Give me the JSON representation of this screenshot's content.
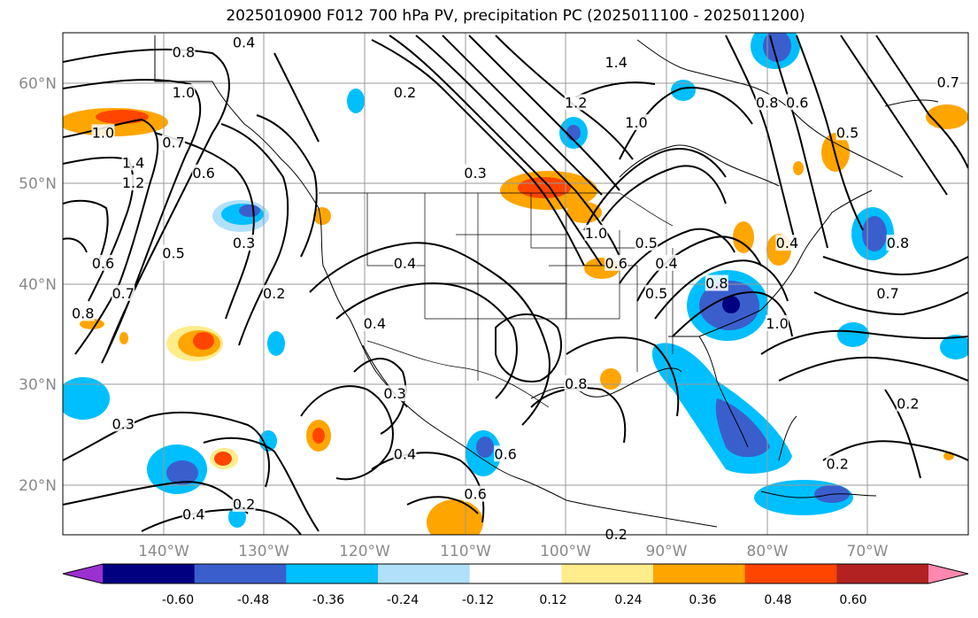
{
  "title": "2025010900 F012 700 hPa PV, precipitation PC (2025011100 - 2025011200)",
  "map": {
    "lat_ticks": [
      "20°N",
      "30°N",
      "40°N",
      "50°N",
      "60°N"
    ],
    "lon_ticks": [
      "140°W",
      "130°W",
      "120°W",
      "110°W",
      "100°W",
      "90°W",
      "80°W",
      "70°W"
    ],
    "lon_range": [
      -150,
      -60
    ],
    "lat_range": [
      15,
      65
    ],
    "grid": true
  },
  "colorbar": {
    "ticks": [
      "-0.60",
      "-0.48",
      "-0.36",
      "-0.24",
      "-0.12",
      "0.12",
      "0.24",
      "0.36",
      "0.48",
      "0.60"
    ],
    "colors": [
      "#9b30d0",
      "#000080",
      "#3a5fcd",
      "#00bfff",
      "#b0e0fa",
      "#ffffff",
      "#ffec8b",
      "#ffa500",
      "#ff4500",
      "#b22222",
      "#ff88b0"
    ]
  },
  "contour_labels": [
    {
      "text": "0.8",
      "lon": -138,
      "lat": 63
    },
    {
      "text": "1.0",
      "lon": -138,
      "lat": 59
    },
    {
      "text": "1.0",
      "lon": -146,
      "lat": 55
    },
    {
      "text": "0.7",
      "lon": -139,
      "lat": 54
    },
    {
      "text": "1.4",
      "lon": -143,
      "lat": 52
    },
    {
      "text": "1.2",
      "lon": -143,
      "lat": 50
    },
    {
      "text": "0.6",
      "lon": -136,
      "lat": 51
    },
    {
      "text": "0.3",
      "lon": -132,
      "lat": 44
    },
    {
      "text": "0.5",
      "lon": -139,
      "lat": 43
    },
    {
      "text": "0.6",
      "lon": -146,
      "lat": 42
    },
    {
      "text": "0.7",
      "lon": -144,
      "lat": 39
    },
    {
      "text": "0.8",
      "lon": -148,
      "lat": 37
    },
    {
      "text": "0.2",
      "lon": -129,
      "lat": 39
    },
    {
      "text": "0.2",
      "lon": -116,
      "lat": 59
    },
    {
      "text": "0.3",
      "lon": -109,
      "lat": 51
    },
    {
      "text": "0.4",
      "lon": -116,
      "lat": 42
    },
    {
      "text": "0.4",
      "lon": -119,
      "lat": 36
    },
    {
      "text": "0.3",
      "lon": -117,
      "lat": 29
    },
    {
      "text": "0.4",
      "lon": -116,
      "lat": 23
    },
    {
      "text": "0.6",
      "lon": -109,
      "lat": 19
    },
    {
      "text": "0.6",
      "lon": -106,
      "lat": 23
    },
    {
      "text": "0.8",
      "lon": -99,
      "lat": 30
    },
    {
      "text": "1.4",
      "lon": -95,
      "lat": 62
    },
    {
      "text": "1.2",
      "lon": -99,
      "lat": 58
    },
    {
      "text": "1.0",
      "lon": -93,
      "lat": 56
    },
    {
      "text": "1.0",
      "lon": -97,
      "lat": 45
    },
    {
      "text": "0.6",
      "lon": -95,
      "lat": 42
    },
    {
      "text": "0.5",
      "lon": -92,
      "lat": 44
    },
    {
      "text": "0.4",
      "lon": -90,
      "lat": 42
    },
    {
      "text": "0.5",
      "lon": -91,
      "lat": 39
    },
    {
      "text": "0.8",
      "lon": -85,
      "lat": 40
    },
    {
      "text": "1.0",
      "lon": -79,
      "lat": 36
    },
    {
      "text": "0.4",
      "lon": -78,
      "lat": 44
    },
    {
      "text": "0.8",
      "lon": -80,
      "lat": 58
    },
    {
      "text": "0.6",
      "lon": -77,
      "lat": 58
    },
    {
      "text": "0.5",
      "lon": -72,
      "lat": 55
    },
    {
      "text": "0.8",
      "lon": -67,
      "lat": 44
    },
    {
      "text": "0.7",
      "lon": -68,
      "lat": 39
    },
    {
      "text": "0.7",
      "lon": -62,
      "lat": 60
    },
    {
      "text": "0.2",
      "lon": -66,
      "lat": 28
    },
    {
      "text": "0.2",
      "lon": -73,
      "lat": 22
    },
    {
      "text": "0.3",
      "lon": -144,
      "lat": 26
    },
    {
      "text": "0.2",
      "lon": -132,
      "lat": 18
    },
    {
      "text": "0.4",
      "lon": -137,
      "lat": 17
    },
    {
      "text": "0.4",
      "lon": -132,
      "lat": 64
    },
    {
      "text": "0.2",
      "lon": -95,
      "lat": 15
    }
  ]
}
